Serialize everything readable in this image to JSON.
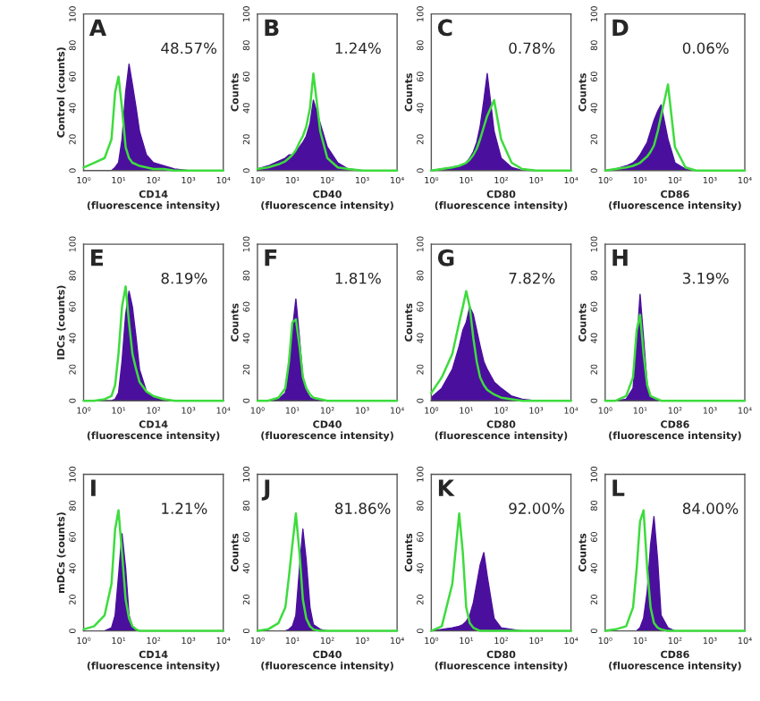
{
  "chart_data": [
    {
      "type": "area",
      "annotations": [
        "A",
        "48.57%"
      ],
      "xlabel": "CD14\n(fluorescence intensity)",
      "ylabel": "Control (counts)",
      "log": "x",
      "xlim": [
        1,
        10000
      ],
      "ylim": [
        0,
        100
      ],
      "xticks": [
        {
          "value": 1,
          "label": "10⁰"
        },
        {
          "value": 10,
          "label": "10¹"
        },
        {
          "value": 100,
          "label": "10²"
        },
        {
          "value": 1000,
          "label": "10³"
        },
        {
          "value": 10000,
          "label": "10⁴"
        }
      ],
      "yticks": [
        0,
        20,
        40,
        60,
        80,
        100
      ],
      "x": [
        1,
        2,
        4,
        6.3,
        8,
        10,
        12.6,
        16,
        20,
        25,
        32,
        40,
        63,
        100,
        200,
        400,
        1000,
        10000
      ],
      "series": [
        {
          "color": "#4b0f9e",
          "values": [
            0,
            0,
            0,
            0,
            2,
            5,
            20,
            50,
            68,
            55,
            40,
            25,
            10,
            5,
            3,
            1,
            0,
            0
          ]
        },
        {
          "type": "line",
          "color": "#3ddc3d",
          "values": [
            2,
            5,
            8,
            20,
            50,
            60,
            40,
            15,
            8,
            5,
            4,
            3,
            2,
            1,
            1,
            0,
            0,
            0
          ]
        }
      ]
    },
    {
      "type": "area",
      "annotations": [
        "B",
        "1.24%"
      ],
      "xlabel": "CD40\n(fluorescence intensity)",
      "ylabel": "Counts",
      "log": "x",
      "xlim": [
        1,
        10000
      ],
      "ylim": [
        0,
        100
      ],
      "xticks": [
        {
          "value": 1,
          "label": "10⁰"
        },
        {
          "value": 10,
          "label": "10¹"
        },
        {
          "value": 100,
          "label": "10²"
        },
        {
          "value": 1000,
          "label": "10³"
        },
        {
          "value": 10000,
          "label": "10⁴"
        }
      ],
      "yticks": [
        0,
        20,
        40,
        60,
        80,
        100
      ],
      "x": [
        1,
        2,
        4,
        6.3,
        8,
        10,
        12.6,
        16,
        20,
        25,
        32,
        40,
        63,
        100,
        200,
        400,
        1000,
        10000
      ],
      "series": [
        {
          "color": "#4b0f9e",
          "values": [
            1,
            3,
            6,
            8,
            10,
            10,
            12,
            15,
            18,
            22,
            30,
            45,
            30,
            15,
            5,
            1,
            0,
            0
          ]
        },
        {
          "type": "line",
          "color": "#3ddc3d",
          "values": [
            1,
            2,
            4,
            6,
            8,
            10,
            13,
            18,
            22,
            28,
            40,
            62,
            25,
            8,
            2,
            1,
            0,
            0
          ]
        }
      ]
    },
    {
      "type": "area",
      "annotations": [
        "C",
        "0.78%"
      ],
      "xlabel": "CD80\n(fluorescence intensity)",
      "ylabel": "Counts",
      "log": "x",
      "xlim": [
        1,
        10000
      ],
      "ylim": [
        0,
        100
      ],
      "xticks": [
        {
          "value": 1,
          "label": "10⁰"
        },
        {
          "value": 10,
          "label": "10¹"
        },
        {
          "value": 100,
          "label": "10²"
        },
        {
          "value": 1000,
          "label": "10³"
        },
        {
          "value": 10000,
          "label": "10⁴"
        }
      ],
      "yticks": [
        0,
        20,
        40,
        60,
        80,
        100
      ],
      "x": [
        1,
        2,
        4,
        6.3,
        8,
        10,
        12.6,
        16,
        20,
        25,
        32,
        40,
        63,
        100,
        200,
        400,
        1000,
        10000
      ],
      "series": [
        {
          "color": "#4b0f9e",
          "values": [
            0,
            1,
            2,
            3,
            4,
            5,
            8,
            12,
            18,
            28,
            45,
            62,
            25,
            8,
            2,
            0,
            0,
            0
          ]
        },
        {
          "type": "line",
          "color": "#3ddc3d",
          "values": [
            0,
            1,
            2,
            3,
            4,
            5,
            7,
            10,
            14,
            20,
            28,
            35,
            45,
            20,
            5,
            1,
            0,
            0
          ]
        }
      ]
    },
    {
      "type": "area",
      "annotations": [
        "D",
        "0.06%"
      ],
      "xlabel": "CD86\n(fluorescence intensity)",
      "ylabel": "Counts",
      "log": "x",
      "xlim": [
        1,
        10000
      ],
      "ylim": [
        0,
        100
      ],
      "xticks": [
        {
          "value": 1,
          "label": "10⁰"
        },
        {
          "value": 10,
          "label": "10¹"
        },
        {
          "value": 100,
          "label": "10²"
        },
        {
          "value": 1000,
          "label": "10³"
        },
        {
          "value": 10000,
          "label": "10⁴"
        }
      ],
      "yticks": [
        0,
        20,
        40,
        60,
        80,
        100
      ],
      "x": [
        1,
        2,
        4,
        6.3,
        8,
        10,
        12.6,
        16,
        20,
        25,
        32,
        40,
        63,
        100,
        200,
        400,
        1000,
        10000
      ],
      "series": [
        {
          "color": "#4b0f9e",
          "values": [
            0,
            1,
            3,
            5,
            7,
            10,
            14,
            18,
            25,
            32,
            38,
            42,
            20,
            5,
            1,
            0,
            0,
            0
          ]
        },
        {
          "type": "line",
          "color": "#3ddc3d",
          "values": [
            0,
            1,
            2,
            3,
            4,
            5,
            7,
            9,
            12,
            16,
            25,
            35,
            55,
            15,
            2,
            0,
            0,
            0
          ]
        }
      ]
    },
    {
      "type": "area",
      "annotations": [
        "E",
        "8.19%"
      ],
      "xlabel": "CD14\n(fluorescence intensity)",
      "ylabel": "IDCs (counts)",
      "log": "x",
      "xlim": [
        1,
        10000
      ],
      "ylim": [
        0,
        100
      ],
      "xticks": [
        {
          "value": 1,
          "label": "10⁰"
        },
        {
          "value": 10,
          "label": "10¹"
        },
        {
          "value": 100,
          "label": "10²"
        },
        {
          "value": 1000,
          "label": "10³"
        },
        {
          "value": 10000,
          "label": "10⁴"
        }
      ],
      "yticks": [
        0,
        20,
        40,
        60,
        80,
        100
      ],
      "x": [
        1,
        2,
        4,
        6.3,
        8,
        10,
        12.6,
        16,
        20,
        25,
        32,
        40,
        63,
        100,
        200,
        400,
        1000,
        10000
      ],
      "series": [
        {
          "color": "#4b0f9e",
          "values": [
            0,
            0,
            0,
            0,
            1,
            5,
            25,
            55,
            70,
            60,
            40,
            20,
            6,
            2,
            1,
            0,
            0,
            0
          ]
        },
        {
          "type": "line",
          "color": "#3ddc3d",
          "values": [
            0,
            0,
            1,
            3,
            10,
            30,
            60,
            73,
            50,
            30,
            20,
            12,
            6,
            3,
            1,
            0,
            0,
            0
          ]
        }
      ]
    },
    {
      "type": "area",
      "annotations": [
        "F",
        "1.81%"
      ],
      "xlabel": "CD40\n(fluorescence intensity)",
      "ylabel": "Counts",
      "log": "x",
      "xlim": [
        1,
        10000
      ],
      "ylim": [
        0,
        100
      ],
      "xticks": [
        {
          "value": 1,
          "label": "10⁰"
        },
        {
          "value": 10,
          "label": "10¹"
        },
        {
          "value": 100,
          "label": "10²"
        },
        {
          "value": 1000,
          "label": "10³"
        },
        {
          "value": 10000,
          "label": "10⁴"
        }
      ],
      "yticks": [
        0,
        20,
        40,
        60,
        80,
        100
      ],
      "x": [
        1,
        2,
        4,
        6.3,
        8,
        10,
        12.6,
        16,
        20,
        25,
        32,
        40,
        63,
        100,
        200,
        400,
        1000,
        10000
      ],
      "series": [
        {
          "color": "#4b0f9e",
          "values": [
            0,
            0,
            1,
            5,
            20,
            45,
            65,
            40,
            15,
            6,
            2,
            1,
            0,
            0,
            0,
            0,
            0,
            0
          ]
        },
        {
          "type": "line",
          "color": "#3ddc3d",
          "values": [
            0,
            0,
            2,
            8,
            25,
            50,
            52,
            35,
            15,
            8,
            4,
            2,
            1,
            0,
            0,
            0,
            0,
            0
          ]
        }
      ]
    },
    {
      "type": "area",
      "annotations": [
        "G",
        "7.82%"
      ],
      "xlabel": "CD80\n(fluorescence intensity)",
      "ylabel": "Counts",
      "log": "x",
      "xlim": [
        1,
        10000
      ],
      "ylim": [
        0,
        100
      ],
      "xticks": [
        {
          "value": 1,
          "label": "10⁰"
        },
        {
          "value": 10,
          "label": "10¹"
        },
        {
          "value": 100,
          "label": "10²"
        },
        {
          "value": 1000,
          "label": "10³"
        },
        {
          "value": 10000,
          "label": "10⁴"
        }
      ],
      "yticks": [
        0,
        20,
        40,
        60,
        80,
        100
      ],
      "x": [
        1,
        2,
        4,
        6.3,
        8,
        10,
        12.6,
        16,
        20,
        25,
        32,
        40,
        63,
        100,
        200,
        400,
        1000,
        10000
      ],
      "series": [
        {
          "color": "#4b0f9e",
          "values": [
            2,
            8,
            20,
            35,
            45,
            50,
            60,
            55,
            45,
            35,
            25,
            20,
            12,
            8,
            3,
            1,
            0,
            0
          ]
        },
        {
          "type": "line",
          "color": "#3ddc3d",
          "values": [
            5,
            15,
            30,
            50,
            60,
            70,
            60,
            40,
            25,
            15,
            10,
            7,
            4,
            2,
            1,
            0,
            0,
            0
          ]
        }
      ]
    },
    {
      "type": "area",
      "annotations": [
        "H",
        "3.19%"
      ],
      "xlabel": "CD86\n(fluorescence intensity)",
      "ylabel": "Counts",
      "log": "x",
      "xlim": [
        1,
        10000
      ],
      "ylim": [
        0,
        100
      ],
      "xticks": [
        {
          "value": 1,
          "label": "10⁰"
        },
        {
          "value": 10,
          "label": "10¹"
        },
        {
          "value": 100,
          "label": "10²"
        },
        {
          "value": 1000,
          "label": "10³"
        },
        {
          "value": 10000,
          "label": "10⁴"
        }
      ],
      "yticks": [
        0,
        20,
        40,
        60,
        80,
        100
      ],
      "x": [
        1,
        2,
        4,
        6.3,
        8,
        10,
        12.6,
        16,
        20,
        25,
        32,
        40,
        63,
        100,
        200,
        400,
        1000,
        10000
      ],
      "series": [
        {
          "color": "#4b0f9e",
          "values": [
            0,
            0,
            1,
            8,
            35,
            68,
            40,
            10,
            3,
            1,
            0,
            0,
            0,
            0,
            0,
            0,
            0,
            0
          ]
        },
        {
          "type": "line",
          "color": "#3ddc3d",
          "values": [
            0,
            0,
            3,
            15,
            45,
            55,
            30,
            10,
            3,
            2,
            1,
            0,
            0,
            0,
            0,
            0,
            0,
            0
          ]
        }
      ]
    },
    {
      "type": "area",
      "annotations": [
        "I",
        "1.21%"
      ],
      "xlabel": "CD14\n(fluorescence intensity)",
      "ylabel": "mDCs (counts)",
      "log": "x",
      "xlim": [
        1,
        10000
      ],
      "ylim": [
        0,
        100
      ],
      "xticks": [
        {
          "value": 1,
          "label": "10⁰"
        },
        {
          "value": 10,
          "label": "10¹"
        },
        {
          "value": 100,
          "label": "10²"
        },
        {
          "value": 1000,
          "label": "10³"
        },
        {
          "value": 10000,
          "label": "10⁴"
        }
      ],
      "yticks": [
        0,
        20,
        40,
        60,
        80,
        100
      ],
      "x": [
        1,
        2,
        4,
        6.3,
        8,
        10,
        12.6,
        16,
        20,
        25,
        32,
        40,
        63,
        100,
        200,
        400,
        1000,
        10000
      ],
      "series": [
        {
          "color": "#4b0f9e",
          "values": [
            0,
            0,
            0,
            2,
            10,
            35,
            62,
            40,
            10,
            3,
            1,
            0,
            0,
            0,
            0,
            0,
            0,
            0
          ]
        },
        {
          "type": "line",
          "color": "#3ddc3d",
          "values": [
            1,
            3,
            10,
            30,
            65,
            77,
            50,
            20,
            8,
            3,
            1,
            0,
            0,
            0,
            0,
            0,
            0,
            0
          ]
        }
      ]
    },
    {
      "type": "area",
      "annotations": [
        "J",
        "81.86%"
      ],
      "xlabel": "CD40\n(fluorescence intensity)",
      "ylabel": "Counts",
      "log": "x",
      "xlim": [
        1,
        10000
      ],
      "ylim": [
        0,
        100
      ],
      "xticks": [
        {
          "value": 1,
          "label": "10⁰"
        },
        {
          "value": 10,
          "label": "10¹"
        },
        {
          "value": 100,
          "label": "10²"
        },
        {
          "value": 1000,
          "label": "10³"
        },
        {
          "value": 10000,
          "label": "10⁴"
        }
      ],
      "yticks": [
        0,
        20,
        40,
        60,
        80,
        100
      ],
      "x": [
        1,
        2,
        4,
        6.3,
        8,
        10,
        12.6,
        16,
        20,
        25,
        32,
        40,
        63,
        100,
        200,
        400,
        1000,
        10000
      ],
      "series": [
        {
          "color": "#4b0f9e",
          "values": [
            0,
            0,
            0,
            0,
            1,
            3,
            10,
            40,
            65,
            45,
            15,
            4,
            1,
            0,
            0,
            0,
            0,
            0
          ]
        },
        {
          "type": "line",
          "color": "#3ddc3d",
          "values": [
            0,
            1,
            5,
            15,
            35,
            55,
            75,
            50,
            20,
            8,
            3,
            1,
            0,
            0,
            0,
            0,
            0,
            0
          ]
        }
      ]
    },
    {
      "type": "area",
      "annotations": [
        "K",
        "92.00%"
      ],
      "xlabel": "CD80\n(fluorescence intensity)",
      "ylabel": "Counts",
      "log": "x",
      "xlim": [
        1,
        10000
      ],
      "ylim": [
        0,
        100
      ],
      "xticks": [
        {
          "value": 1,
          "label": "10⁰"
        },
        {
          "value": 10,
          "label": "10¹"
        },
        {
          "value": 100,
          "label": "10²"
        },
        {
          "value": 1000,
          "label": "10³"
        },
        {
          "value": 10000,
          "label": "10⁴"
        }
      ],
      "yticks": [
        0,
        20,
        40,
        60,
        80,
        100
      ],
      "x": [
        1,
        2,
        4,
        6.3,
        8,
        10,
        12.6,
        16,
        20,
        25,
        32,
        40,
        63,
        100,
        200,
        400,
        1000,
        10000
      ],
      "series": [
        {
          "color": "#4b0f9e",
          "values": [
            0,
            1,
            2,
            3,
            4,
            6,
            10,
            18,
            30,
            42,
            50,
            35,
            8,
            2,
            1,
            0,
            0,
            0
          ]
        },
        {
          "type": "line",
          "color": "#3ddc3d",
          "values": [
            0,
            3,
            30,
            75,
            50,
            15,
            5,
            2,
            1,
            0,
            0,
            0,
            0,
            0,
            0,
            0,
            0,
            0
          ]
        }
      ]
    },
    {
      "type": "area",
      "annotations": [
        "L",
        "84.00%"
      ],
      "xlabel": "CD86\n(fluorescence intensity)",
      "ylabel": "Counts",
      "log": "x",
      "xlim": [
        1,
        10000
      ],
      "ylim": [
        0,
        100
      ],
      "xticks": [
        {
          "value": 1,
          "label": "10⁰"
        },
        {
          "value": 10,
          "label": "10¹"
        },
        {
          "value": 100,
          "label": "10²"
        },
        {
          "value": 1000,
          "label": "10³"
        },
        {
          "value": 10000,
          "label": "10⁴"
        }
      ],
      "yticks": [
        0,
        20,
        40,
        60,
        80,
        100
      ],
      "x": [
        1,
        2,
        4,
        6.3,
        8,
        10,
        12.6,
        16,
        20,
        25,
        32,
        40,
        63,
        100,
        200,
        400,
        1000,
        10000
      ],
      "series": [
        {
          "color": "#4b0f9e",
          "values": [
            0,
            0,
            0,
            0,
            0,
            2,
            8,
            25,
            55,
            73,
            45,
            10,
            2,
            0,
            0,
            0,
            0,
            0
          ]
        },
        {
          "type": "line",
          "color": "#3ddc3d",
          "values": [
            0,
            1,
            3,
            15,
            40,
            70,
            77,
            40,
            15,
            5,
            2,
            1,
            0,
            0,
            0,
            0,
            0,
            0
          ]
        }
      ]
    }
  ]
}
